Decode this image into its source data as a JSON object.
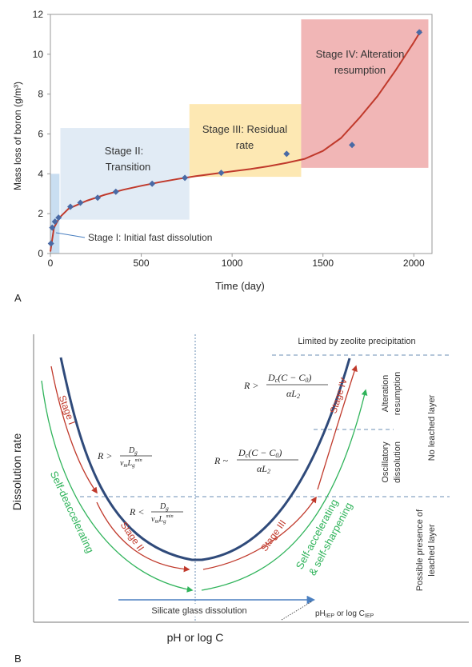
{
  "panel_a": {
    "label": "A",
    "xlabel": "Time (day)",
    "ylabel": "Mass loss of boron (g/m³)",
    "stage_labels": {
      "s1": "Stage I: Initial fast dissolution",
      "s2_line1": "Stage II:",
      "s2_line2": "Transition",
      "s3_line1": "Stage III: Residual",
      "s3_line2": "rate",
      "s4_line1": "Stage IV: Alteration",
      "s4_line2": "resumption"
    },
    "colors": {
      "stage1": "#bfd8ee",
      "stage2": "#dce7f3",
      "stage3": "#fde4a6",
      "stage4": "#eea9a9",
      "curve": "#c0392b",
      "points": "#4a6aa5"
    }
  },
  "panel_b": {
    "label": "B",
    "xlabel": "pH or log C",
    "ylabel": "Dissolution rate",
    "top_note": "Limited by zeolite precipitation",
    "stages": {
      "s1": "Stage I",
      "s2": "Stage II",
      "s3": "Stage III",
      "s4": "Stage IV"
    },
    "green_left": "Self-deaccelerating",
    "green_right_line1": "Self-accelerating",
    "green_right_line2": "& self-sharpening",
    "arrow_label": "Silicate glass dissolution",
    "iep_label": "pH",
    "iep_sub": "IEP",
    "iep_or": " or log C",
    "iep_sub2": "IEP",
    "right_col": {
      "alteration": "Alteration",
      "resumption": "resumption",
      "oscillatory": "Oscillatory",
      "dissolution": "dissolution",
      "no_leached": "No leached layer",
      "possible1": "Possible presence of",
      "possible2": "leached layer"
    },
    "eq": {
      "r_gt": "R >",
      "r_lt": "R <",
      "r_sim": "R ~",
      "dg": "D",
      "dg_sub": "g",
      "vm": "v",
      "vm_sub": "m",
      "lg": "L",
      "lg_sub": "g",
      "lg_sup": "min",
      "dc_num": "D",
      "dc_sub": "c",
      "dc_rest": "(C − C",
      "c0_sub": "0",
      "dc_close": ")",
      "den_alpha": "αL",
      "den_sub": "2"
    },
    "colors": {
      "curve": "#2f4a7a",
      "red": "#c0392b",
      "green": "#2fb35a",
      "axis_arrow": "#4a7fc0",
      "dash": "#6b8fb5"
    }
  },
  "chart_data": [
    {
      "type": "scatter",
      "title": "",
      "xlabel": "Time (day)",
      "ylabel": "Mass loss of boron (g/m³)",
      "xlim": [
        0,
        2100
      ],
      "ylim": [
        0,
        12
      ],
      "xticks": [
        0,
        500,
        1000,
        1500,
        2000
      ],
      "yticks": [
        0,
        2,
        4,
        6,
        8,
        10,
        12
      ],
      "series": [
        {
          "x": [
            3,
            10,
            25,
            45,
            110,
            165,
            260,
            360,
            560,
            740,
            940,
            1300,
            1660,
            2030
          ],
          "y": [
            0.5,
            1.3,
            1.6,
            1.8,
            2.35,
            2.55,
            2.8,
            3.1,
            3.5,
            3.8,
            4.05,
            5.0,
            5.45,
            11.1
          ]
        }
      ],
      "fit_curve": {
        "x": [
          0,
          20,
          50,
          100,
          200,
          300,
          400,
          500,
          600,
          700,
          800,
          900,
          1000,
          1100,
          1200,
          1300,
          1400,
          1500,
          1600,
          1700,
          1800,
          1900,
          2000,
          2040
        ],
        "y": [
          0.1,
          1.3,
          1.8,
          2.25,
          2.65,
          2.95,
          3.2,
          3.4,
          3.58,
          3.74,
          3.88,
          4.0,
          4.12,
          4.24,
          4.38,
          4.55,
          4.75,
          5.15,
          5.8,
          6.8,
          7.9,
          9.2,
          10.6,
          11.2
        ]
      },
      "stage_regions": [
        {
          "name": "Stage I",
          "x": [
            0,
            50
          ],
          "y": [
            0,
            4.0
          ]
        },
        {
          "name": "Stage II",
          "x": [
            55,
            765
          ],
          "y": [
            1.7,
            6.3
          ]
        },
        {
          "name": "Stage III",
          "x": [
            765,
            1380
          ],
          "y": [
            3.85,
            7.5
          ]
        },
        {
          "name": "Stage IV",
          "x": [
            1380,
            2080
          ],
          "y": [
            4.3,
            11.75
          ]
        }
      ]
    }
  ]
}
